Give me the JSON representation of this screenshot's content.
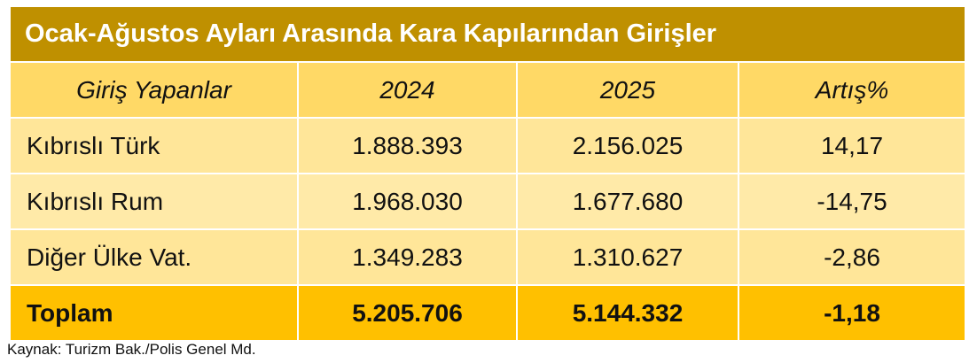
{
  "table": {
    "title": "Ocak-Ağustos Ayları Arasında Kara Kapılarından Girişler",
    "header": [
      "Giriş Yapanlar",
      "2024",
      "2025",
      "Artış%"
    ],
    "rows": [
      [
        "Kıbrıslı Türk",
        "1.888.393",
        "2.156.025",
        "14,17"
      ],
      [
        "Kıbrıslı Rum",
        "1.968.030",
        "1.677.680",
        "-14,75"
      ],
      [
        "Diğer Ülke Vat.",
        "1.349.283",
        "1.310.627",
        "-2,86"
      ]
    ],
    "total": [
      "Toplam",
      "5.205.706",
      "5.144.332",
      "-1,18"
    ]
  },
  "source": "Kaynak: Turizm Bak./Polis Genel Md."
}
